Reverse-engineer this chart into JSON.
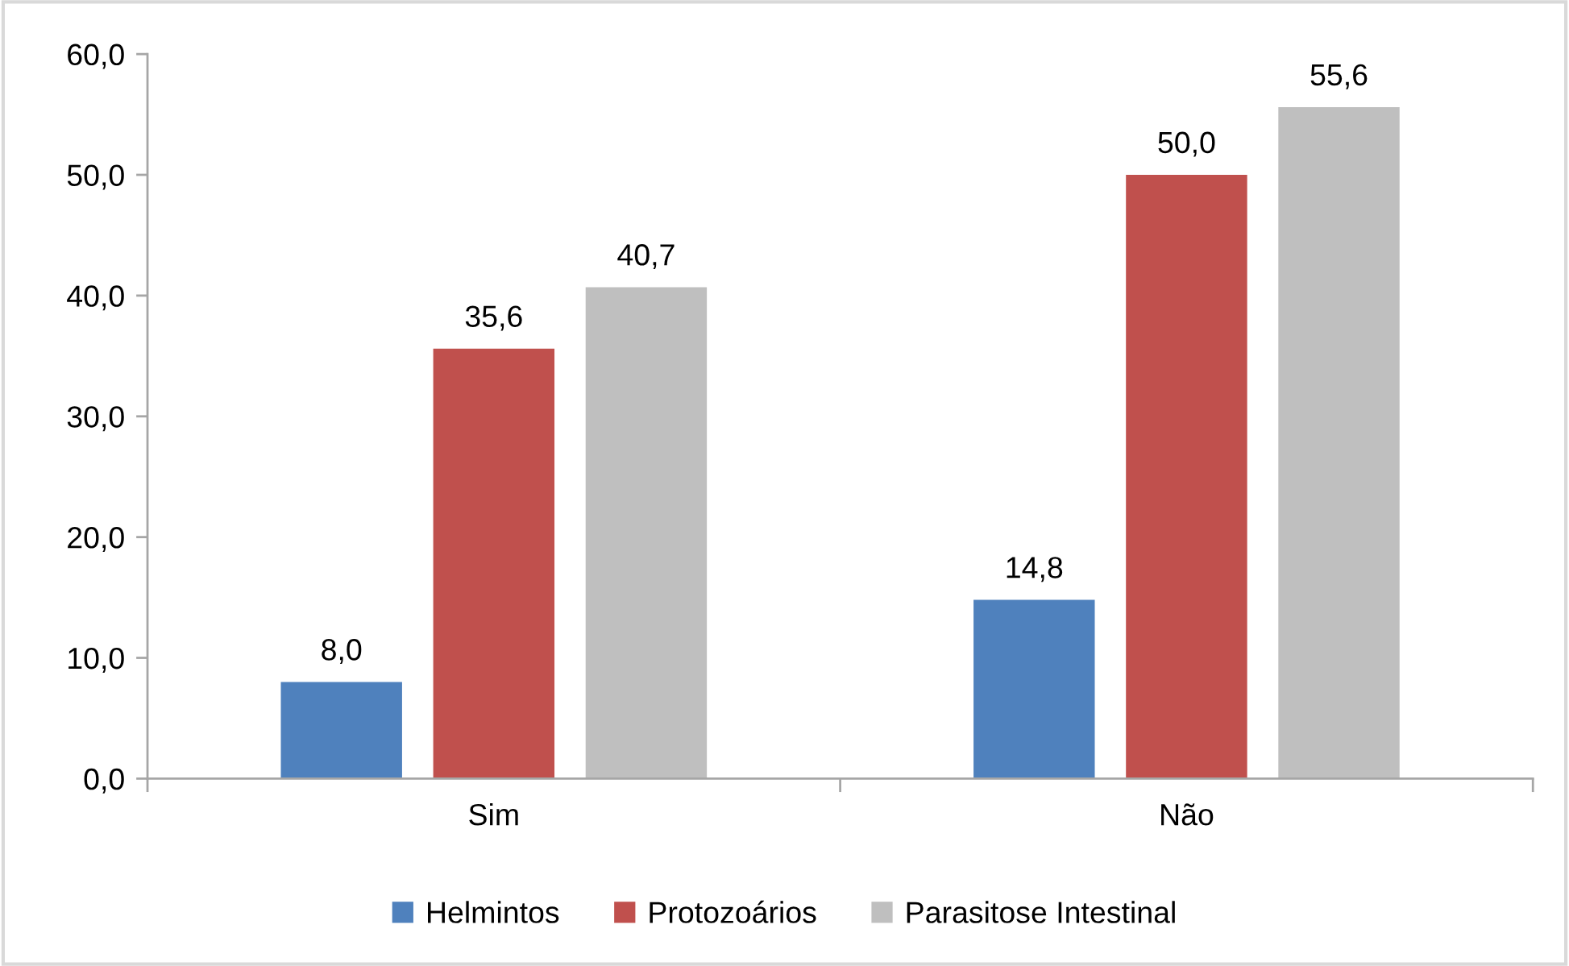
{
  "chart_data": {
    "type": "bar",
    "categories": [
      "Sim",
      "Não"
    ],
    "series": [
      {
        "name": "Helmintos",
        "color": "#4f81bd",
        "values": [
          8.0,
          14.8
        ],
        "value_labels": [
          "8,0",
          "14,8"
        ]
      },
      {
        "name": "Protozoários",
        "color": "#c0504d",
        "values": [
          35.6,
          50.0
        ],
        "value_labels": [
          "35,6",
          "50,0"
        ]
      },
      {
        "name": "Parasitose Intestinal",
        "color": "#bfbfbf",
        "values": [
          40.7,
          55.6
        ],
        "value_labels": [
          "40,7",
          "55,6"
        ]
      }
    ],
    "ylim": [
      0,
      60
    ],
    "yticks": [
      {
        "value": 0,
        "label": "0,0"
      },
      {
        "value": 10,
        "label": "10,0"
      },
      {
        "value": 20,
        "label": "20,0"
      },
      {
        "value": 30,
        "label": "30,0"
      },
      {
        "value": 40,
        "label": "40,0"
      },
      {
        "value": 50,
        "label": "50,0"
      },
      {
        "value": 60,
        "label": "60,0"
      }
    ],
    "grid": false,
    "legend": "bottom"
  }
}
